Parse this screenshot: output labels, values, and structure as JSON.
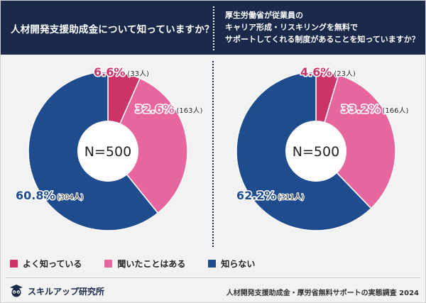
{
  "header": {
    "left_question": "人材開発支援助成金について知っていますか？",
    "right_question_lines": [
      "厚生労働省が従業員の",
      "キャリア形成・リスキリングを無料で",
      "サポートしてくれる制度があることを知っていますか？"
    ]
  },
  "colors": {
    "navy": "#1b2a4a",
    "crimson": "#cc3366",
    "pink": "#e8669e",
    "blue": "#1f4b8f"
  },
  "chart_data": [
    {
      "type": "pie",
      "title": "人材開発支援助成金について知っていますか？",
      "center_label": "N=500",
      "labels": [
        "よく知っている",
        "聞いたことはある",
        "知らない"
      ],
      "values": [
        6.6,
        32.6,
        60.8
      ],
      "value_labels": [
        "6.6%",
        "32.6%",
        "60.8%"
      ],
      "counts": [
        "(33人)",
        "(163人)",
        "(304人)"
      ]
    },
    {
      "type": "pie",
      "title": "厚生労働省が従業員のキャリア形成・リスキリングを無料でサポートしてくれる制度があることを知っていますか？",
      "center_label": "N=500",
      "labels": [
        "よく知っている",
        "聞いたことはある",
        "知らない"
      ],
      "values": [
        4.6,
        33.2,
        62.2
      ],
      "value_labels": [
        "4.6%",
        "33.2%",
        "62.2%"
      ],
      "counts": [
        "(23人)",
        "(166人)",
        "(311人)"
      ]
    }
  ],
  "legend": [
    {
      "label": "よく知っている",
      "color": "#cc3366"
    },
    {
      "label": "聞いたことはある",
      "color": "#e8669e"
    },
    {
      "label": "知らない",
      "color": "#1f4b8f"
    }
  ],
  "footer": {
    "brand": "スキルアップ研究所",
    "source": "人材開発支援助成金・厚労省無料サポートの実態調査 2024"
  }
}
